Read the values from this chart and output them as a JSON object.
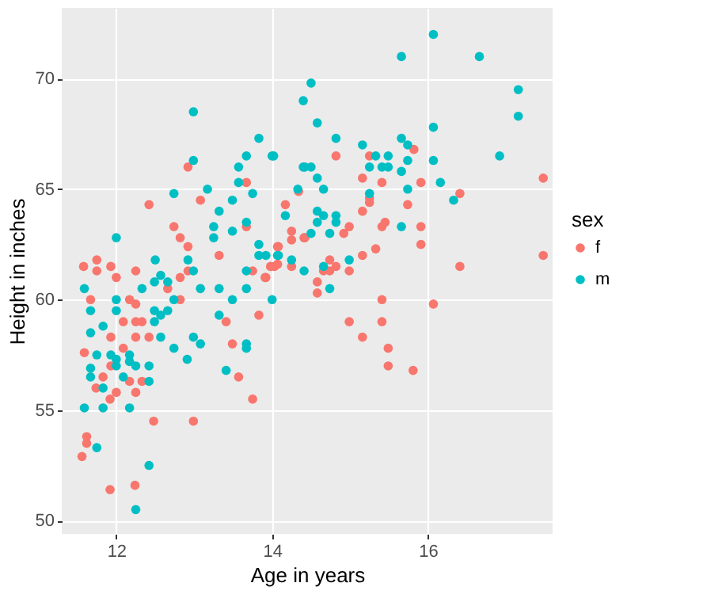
{
  "chart_data": {
    "type": "scatter",
    "xlabel": "Age in years",
    "ylabel": "Height in inches",
    "legend_title": "sex",
    "xlim": [
      11.3,
      17.6
    ],
    "ylim": [
      49.4,
      73.2
    ],
    "xticks": [
      12,
      14,
      16
    ],
    "yticks": [
      50,
      55,
      60,
      65,
      70
    ],
    "grid": true,
    "legend": "right",
    "marker": "circle",
    "series": [
      {
        "name": "f",
        "color": "#f8766d",
        "x": [
          11.56,
          11.62,
          11.62,
          11.92,
          12.24,
          12.48,
          12.99,
          13.75,
          13.57,
          11.92,
          11.74,
          11.83,
          11.93,
          11.93,
          12.0,
          12.09,
          12.09,
          12.17,
          12.25,
          12.25,
          12.33,
          12.25,
          12.42,
          12.17,
          12.25,
          12.33,
          12.66,
          12.82,
          12.82,
          13.41,
          13.49,
          13.83,
          13.91,
          12.0,
          11.59,
          11.67,
          11.58,
          11.75,
          11.75,
          11.93,
          12.25,
          12.42,
          12.92,
          13.08,
          12.74,
          12.82,
          12.92,
          12.92,
          13.32,
          13.67,
          13.67,
          13.75,
          13.92,
          13.98,
          14.03,
          14.08,
          14.17,
          14.25,
          14.25,
          14.25,
          14.34,
          14.41,
          14.07,
          14.07,
          14.42,
          14.58,
          14.66,
          14.74,
          14.74,
          14.82,
          14.92,
          14.99,
          14.99,
          15.16,
          15.16,
          15.25,
          15.25,
          15.16,
          15.25,
          14.82,
          15.41,
          15.41,
          15.45,
          15.33,
          15.74,
          15.82,
          15.91,
          15.91,
          15.91,
          16.41,
          16.41,
          17.48,
          17.48,
          14.58,
          14.99,
          15.41,
          15.41,
          15.16,
          15.49,
          15.49,
          15.81,
          16.07
        ],
        "values": [
          52.9,
          53.8,
          53.5,
          51.4,
          51.6,
          54.5,
          54.5,
          55.5,
          56.5,
          55.5,
          56.0,
          56.5,
          57.0,
          58.3,
          55.8,
          57.8,
          59.0,
          60.0,
          59.8,
          59.0,
          59.0,
          58.3,
          58.3,
          56.3,
          55.8,
          56.3,
          60.5,
          60.0,
          61.0,
          59.0,
          58.0,
          59.3,
          61.0,
          61.0,
          57.6,
          60.0,
          61.5,
          61.8,
          61.3,
          61.5,
          61.3,
          64.3,
          66.0,
          64.5,
          63.3,
          62.8,
          62.4,
          61.3,
          62.0,
          65.3,
          63.3,
          61.3,
          61.0,
          61.5,
          61.5,
          62.4,
          64.3,
          63.1,
          62.7,
          61.5,
          64.9,
          62.8,
          62.4,
          61.6,
          62.8,
          60.8,
          61.3,
          61.8,
          61.3,
          61.5,
          63.0,
          63.3,
          61.3,
          62.0,
          64.0,
          64.4,
          64.6,
          65.5,
          66.5,
          66.5,
          65.3,
          63.3,
          63.5,
          62.3,
          64.3,
          66.8,
          65.3,
          63.3,
          62.5,
          64.8,
          61.5,
          65.5,
          62.0,
          60.3,
          59.0,
          60.0,
          59.0,
          58.3,
          57.8,
          57.0,
          56.8,
          59.8
        ]
      },
      {
        "name": "m",
        "color": "#00bfc4",
        "x": [
          11.59,
          11.59,
          11.67,
          11.67,
          11.67,
          11.67,
          11.75,
          11.75,
          11.83,
          11.83,
          11.83,
          11.93,
          12.0,
          12.0,
          12.0,
          12.0,
          12.09,
          12.17,
          12.17,
          12.17,
          12.25,
          12.25,
          12.33,
          12.42,
          12.42,
          12.42,
          12.49,
          12.49,
          12.57,
          12.66,
          12.57,
          12.74,
          12.74,
          12.49,
          12.57,
          12.66,
          12.91,
          12.99,
          13.08,
          13.08,
          13.32,
          13.32,
          13.49,
          13.41,
          13.67,
          13.67,
          13.67,
          14.0,
          14.41,
          12.0,
          12.5,
          12.99,
          12.99,
          12.74,
          12.92,
          12.99,
          13.17,
          13.25,
          13.25,
          13.32,
          13.49,
          13.49,
          13.57,
          13.57,
          13.67,
          13.67,
          13.67,
          13.75,
          13.83,
          13.83,
          13.83,
          13.92,
          14.0,
          14.08,
          14.17,
          14.25,
          14.33,
          14.4,
          14.4,
          14.02,
          14.42,
          14.5,
          14.5,
          14.58,
          14.58,
          14.66,
          14.58,
          14.66,
          14.58,
          14.82,
          14.82,
          14.74,
          14.5,
          14.99,
          14.82,
          15.16,
          15.25,
          15.33,
          15.41,
          15.49,
          15.49,
          15.66,
          15.66,
          15.74,
          15.74,
          15.66,
          15.74,
          15.66,
          15.25,
          16.07,
          16.07,
          16.07,
          16.16,
          16.33,
          16.66,
          16.92,
          17.16,
          17.16,
          14.07,
          14.66,
          14.74
        ],
        "values": [
          55.1,
          60.5,
          58.5,
          59.5,
          56.9,
          56.5,
          57.5,
          53.3,
          55.1,
          58.8,
          56.0,
          57.5,
          57.0,
          57.3,
          59.5,
          60.0,
          56.5,
          57.5,
          57.2,
          55.1,
          57.0,
          50.5,
          60.5,
          57.0,
          56.3,
          52.5,
          59.5,
          59.0,
          59.3,
          59.5,
          58.3,
          57.8,
          60.0,
          60.8,
          61.1,
          60.8,
          57.3,
          58.3,
          58.0,
          60.5,
          60.5,
          59.3,
          60.0,
          56.8,
          60.5,
          58.0,
          57.8,
          60.0,
          61.3,
          62.8,
          61.8,
          66.3,
          68.5,
          64.8,
          61.8,
          61.3,
          65.0,
          62.8,
          63.3,
          64.0,
          64.5,
          63.1,
          66.0,
          65.3,
          66.5,
          63.5,
          61.3,
          64.8,
          67.3,
          62.5,
          62.0,
          62.0,
          66.5,
          62.0,
          63.8,
          61.8,
          65.0,
          69.0,
          66.0,
          66.5,
          66.0,
          66.0,
          69.8,
          68.0,
          65.5,
          65.0,
          64.0,
          63.8,
          63.5,
          63.8,
          63.5,
          63.0,
          63.0,
          61.8,
          67.3,
          67.0,
          66.0,
          66.5,
          66.0,
          66.5,
          66.0,
          65.8,
          67.3,
          67.0,
          66.3,
          71.0,
          65.0,
          63.3,
          64.8,
          72.0,
          67.8,
          66.3,
          65.3,
          64.5,
          71.0,
          66.5,
          69.5,
          68.3,
          62.0,
          61.5,
          60.5
        ]
      }
    ]
  }
}
